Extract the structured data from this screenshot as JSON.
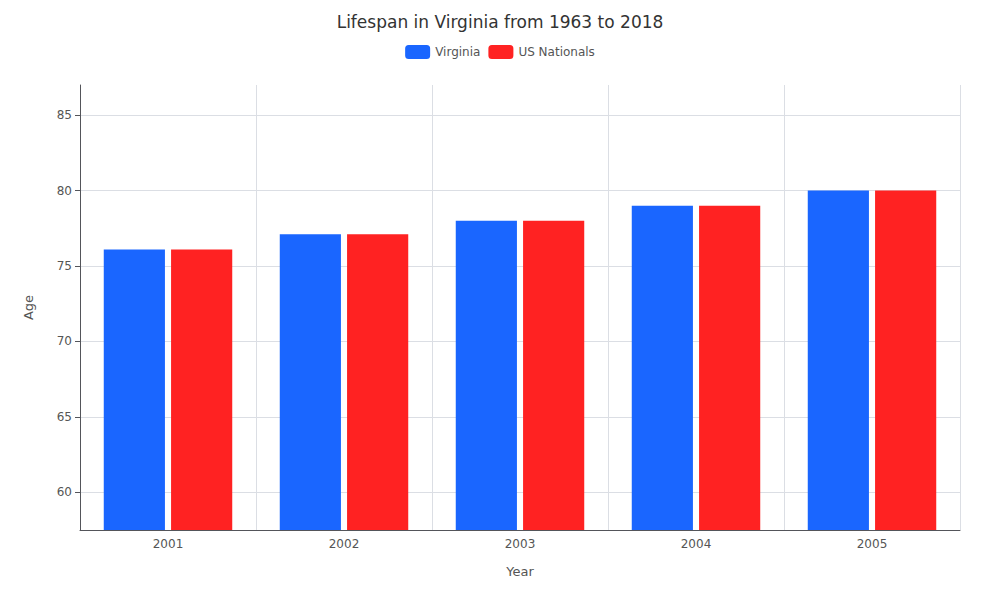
{
  "chart_data": {
    "type": "bar",
    "title": "Lifespan in Virginia from 1963 to 2018",
    "xlabel": "Year",
    "ylabel": "Age",
    "categories": [
      "2001",
      "2002",
      "2003",
      "2004",
      "2005"
    ],
    "series": [
      {
        "name": "Virginia",
        "color": "#1a66ff",
        "values": [
          76.1,
          77.1,
          78.0,
          79.0,
          80.0
        ]
      },
      {
        "name": "US Nationals",
        "color": "#ff2222",
        "values": [
          76.1,
          77.1,
          78.0,
          79.0,
          80.0
        ]
      }
    ],
    "ylim": [
      57.5,
      87
    ],
    "yticks": [
      60,
      65,
      70,
      75,
      80,
      85
    ],
    "grid": true,
    "legend": "top"
  }
}
